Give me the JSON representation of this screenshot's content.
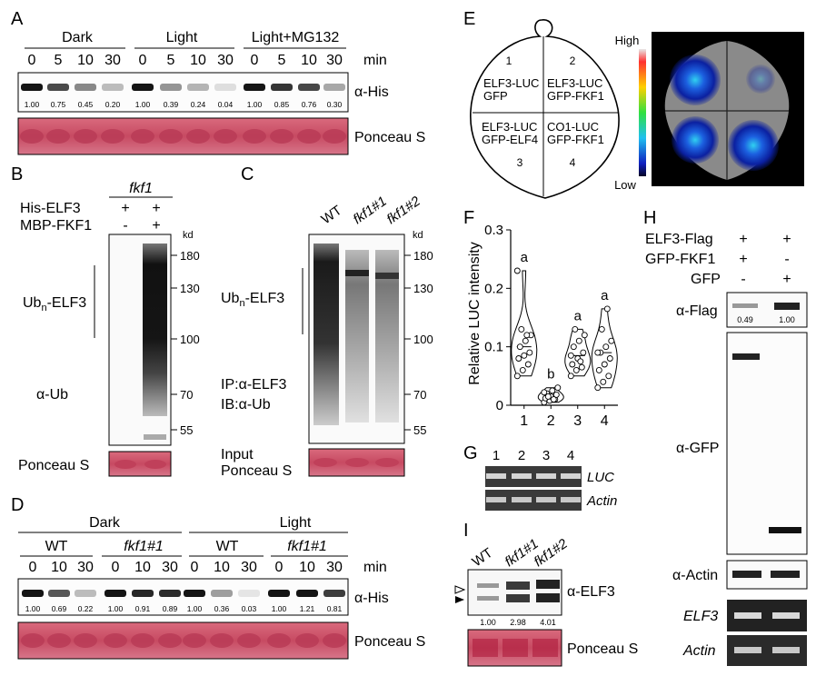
{
  "panels": {
    "A": {
      "letter": "A",
      "groups": [
        "Dark",
        "Light",
        "Light+MG132"
      ],
      "unit": "min",
      "times": [
        "0",
        "5",
        "10",
        "30",
        "0",
        "5",
        "10",
        "30",
        "0",
        "5",
        "10",
        "30"
      ],
      "quant": [
        "1.00",
        "0.75",
        "0.45",
        "0.20",
        "1.00",
        "0.39",
        "0.24",
        "0.04",
        "1.00",
        "0.85",
        "0.76",
        "0.30"
      ],
      "blot_label": "α-His",
      "ponceau_label": "Ponceau S"
    },
    "B": {
      "letter": "B",
      "genotype": "fkf1",
      "row1_label": "His-ELF3",
      "row2_label": "MBP-FKF1",
      "row1_signs": [
        "+",
        "+"
      ],
      "row2_signs": [
        "-",
        "+"
      ],
      "kd": "kd",
      "markers": [
        "180",
        "130",
        "100",
        "70",
        "55"
      ],
      "ub_label": "Ub",
      "ub_sub": "n",
      "ub_rest": "-ELF3",
      "ab_label": "α-Ub",
      "ponceau_label": "Ponceau S"
    },
    "C": {
      "letter": "C",
      "lanes": [
        "WT",
        "fkf1#1",
        "fkf1#2"
      ],
      "kd": "kd",
      "markers": [
        "180",
        "130",
        "100",
        "70",
        "55"
      ],
      "ub_label": "Ub",
      "ub_sub": "n",
      "ub_rest": "-ELF3",
      "ip_label": "IP:α-ELF3",
      "ib_label": "IB:α-Ub",
      "input_label": "Input",
      "ponceau_label": "Ponceau S"
    },
    "D": {
      "letter": "D",
      "conditions": [
        "Dark",
        "Light"
      ],
      "genotypes": [
        "WT",
        "fkf1#1",
        "WT",
        "fkf1#1"
      ],
      "unit": "min",
      "times": [
        "0",
        "10",
        "30",
        "0",
        "10",
        "30",
        "0",
        "10",
        "30",
        "0",
        "10",
        "30"
      ],
      "quant": [
        "1.00",
        "0.69",
        "0.22",
        "1.00",
        "0.91",
        "0.89",
        "1.00",
        "0.36",
        "0.03",
        "1.00",
        "1.21",
        "0.81"
      ],
      "blot_label": "α-His",
      "ponceau_label": "Ponceau S"
    },
    "E": {
      "letter": "E",
      "quadrants": [
        {
          "num": "1",
          "line1": "ELF3-LUC",
          "line2": "GFP"
        },
        {
          "num": "2",
          "line1": "ELF3-LUC",
          "line2": "GFP-FKF1"
        },
        {
          "num": "3",
          "line1": "ELF3-LUC",
          "line2": "GFP-ELF4"
        },
        {
          "num": "4",
          "line1": "CO1-LUC",
          "line2": "GFP-FKF1"
        }
      ],
      "scale_high": "High",
      "scale_low": "Low"
    },
    "F": {
      "letter": "F",
      "ylabel": "Relative LUC intensity",
      "yticks": [
        "0",
        "0.1",
        "0.2",
        "0.3"
      ],
      "xticks": [
        "1",
        "2",
        "3",
        "4"
      ],
      "letters": [
        "a",
        "b",
        "a",
        "a"
      ]
    },
    "G": {
      "letter": "G",
      "lanes": [
        "1",
        "2",
        "3",
        "4"
      ],
      "gene1": "LUC",
      "gene2": "Actin"
    },
    "H": {
      "letter": "H",
      "row1_label": "ELF3-Flag",
      "row2_label": "GFP-FKF1",
      "row3_label": "GFP",
      "row1_signs": [
        "+",
        "+"
      ],
      "row2_signs": [
        "+",
        "-"
      ],
      "row3_signs": [
        "-",
        "+"
      ],
      "flag_label": "α-Flag",
      "flag_quant": [
        "0.49",
        "1.00"
      ],
      "gfp_label": "α-GFP",
      "actin_ab_label": "α-Actin",
      "gene1": "ELF3",
      "gene2": "Actin"
    },
    "I": {
      "letter": "I",
      "lanes": [
        "WT",
        "fkf1#1",
        "fkf1#2"
      ],
      "quant": [
        "1.00",
        "2.98",
        "4.01"
      ],
      "ab_label": "α-ELF3",
      "ponceau_label": "Ponceau S"
    }
  },
  "chart_data": {
    "type": "scatter",
    "title": "",
    "xlabel": "",
    "ylabel": "Relative LUC intensity",
    "categories": [
      "1",
      "2",
      "3",
      "4"
    ],
    "ylim": [
      0,
      0.3
    ],
    "significance_letters": [
      "a",
      "b",
      "a",
      "a"
    ],
    "series": [
      {
        "values": [
          0.05,
          0.06,
          0.07,
          0.08,
          0.085,
          0.09,
          0.1,
          0.11,
          0.12,
          0.13,
          0.12,
          0.23
        ]
      },
      {
        "values": [
          0.005,
          0.008,
          0.01,
          0.012,
          0.015,
          0.018,
          0.02,
          0.025,
          0.03,
          0.015,
          0.01,
          0.022
        ]
      },
      {
        "values": [
          0.05,
          0.06,
          0.065,
          0.07,
          0.08,
          0.09,
          0.1,
          0.11,
          0.12,
          0.13,
          0.075,
          0.085
        ]
      },
      {
        "values": [
          0.03,
          0.04,
          0.05,
          0.06,
          0.07,
          0.08,
          0.09,
          0.1,
          0.11,
          0.13,
          0.165,
          0.09
        ]
      }
    ]
  }
}
